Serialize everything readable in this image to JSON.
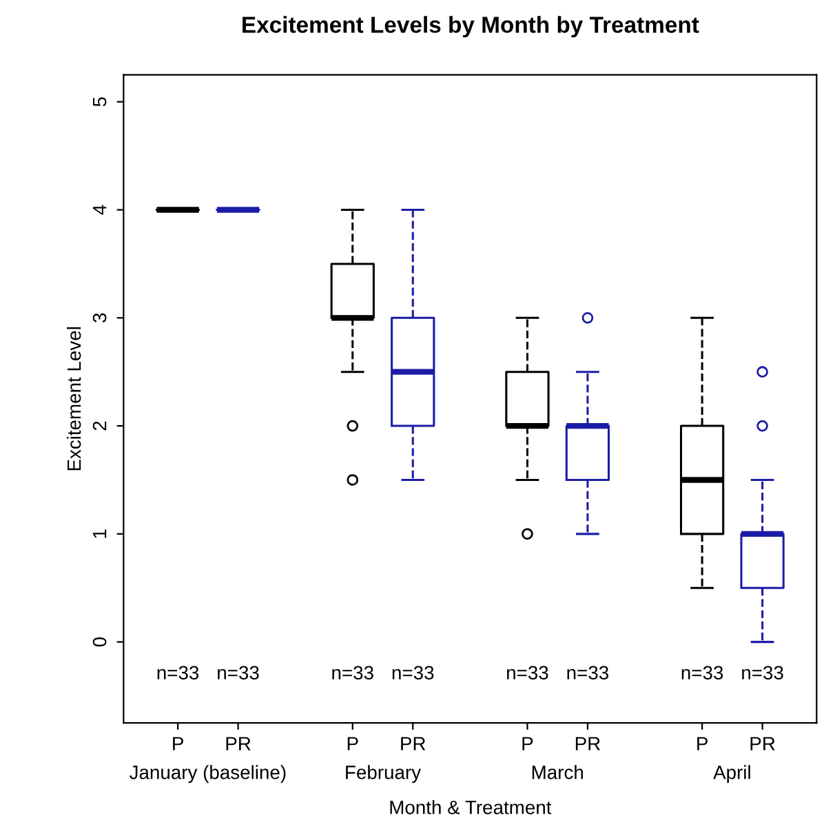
{
  "chart_data": {
    "type": "box",
    "title": "Excitement Levels by Month by Treatment",
    "xlabel": "Month & Treatment",
    "ylabel": "Excitement Level",
    "categories": [
      "January (baseline)",
      "February",
      "March",
      "April"
    ],
    "series": [
      {
        "name": "P",
        "color": "#000000",
        "boxes": [
          {
            "low": 4,
            "q1": 4,
            "median": 4,
            "q3": 4,
            "high": 4
          },
          {
            "low": 2.5,
            "q1": 3,
            "median": 3,
            "q3": 3.5,
            "high": 4,
            "outliers": [
              2,
              1.5
            ]
          },
          {
            "low": 1.5,
            "q1": 2,
            "median": 2,
            "q3": 2.5,
            "high": 3,
            "outliers": [
              1
            ]
          },
          {
            "low": 0.5,
            "q1": 1,
            "median": 1.5,
            "q3": 2,
            "high": 3
          }
        ]
      },
      {
        "name": "PR",
        "color": "#1c1ca8",
        "boxes": [
          {
            "low": 4,
            "q1": 4,
            "median": 4,
            "q3": 4,
            "high": 4
          },
          {
            "low": 1.5,
            "q1": 2,
            "median": 2.5,
            "q3": 3,
            "high": 4
          },
          {
            "low": 1,
            "q1": 1.5,
            "median": 2,
            "q3": 2,
            "high": 2.5,
            "outliers": [
              3
            ]
          },
          {
            "low": 0,
            "q1": 0.5,
            "median": 1,
            "q3": 1,
            "high": 1.5,
            "outliers": [
              2,
              2.5
            ]
          }
        ]
      }
    ],
    "annotations": [
      "n=33",
      "n=33",
      "n=33",
      "n=33",
      "n=33",
      "n=33",
      "n=33",
      "n=33"
    ],
    "ylim": [
      -0.75,
      5.25
    ],
    "yticks": [
      0,
      1,
      2,
      3,
      4,
      5
    ],
    "grid": false,
    "line_style": "dashed",
    "marker": "circle"
  }
}
